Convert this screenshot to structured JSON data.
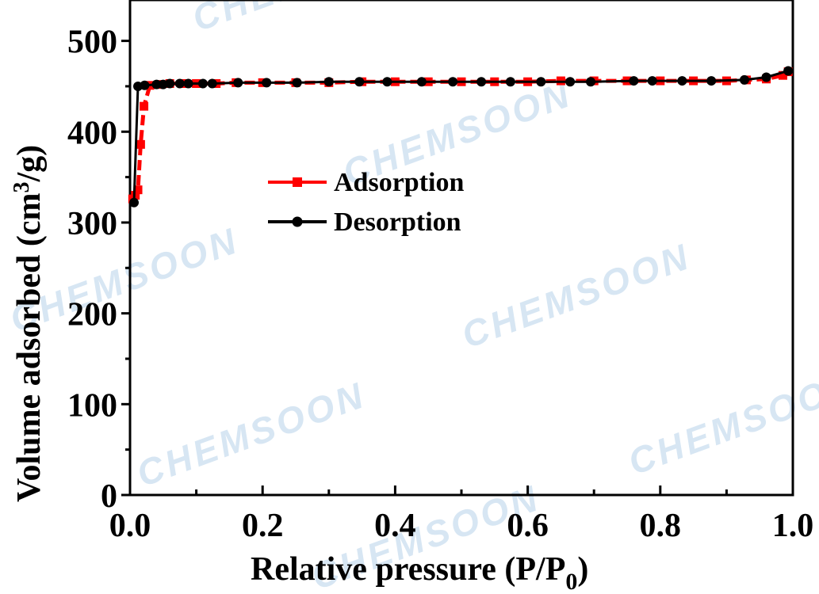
{
  "chart_data": {
    "type": "line",
    "title": "",
    "xlabel": "Relative pressure  (P/P",
    "xlabel_sub": "0",
    "xlabel_close": ")",
    "ylabel": "Volume adsorbed (cm",
    "ylabel_sup": "3",
    "ylabel_end": "/g)",
    "xlim": [
      0.0,
      1.0
    ],
    "ylim": [
      0,
      545
    ],
    "xticks": [
      0.0,
      0.2,
      0.4,
      0.6,
      0.8,
      1.0
    ],
    "xtick_labels": [
      "0.0",
      "0.2",
      "0.4",
      "0.6",
      "0.8",
      "1.0"
    ],
    "yticks": [
      0,
      100,
      200,
      300,
      400,
      500
    ],
    "ytick_labels": [
      "0",
      "100",
      "200",
      "300",
      "400",
      "500"
    ],
    "legend_position": "center-left",
    "watermark": "CHEMSOON",
    "series": [
      {
        "name": "Adsorption",
        "color": "#ff0000",
        "marker": "square",
        "dashed": true,
        "x": [
          0.004,
          0.008,
          0.012,
          0.016,
          0.021,
          0.03,
          0.045,
          0.06,
          0.08,
          0.1,
          0.13,
          0.16,
          0.2,
          0.25,
          0.3,
          0.35,
          0.4,
          0.45,
          0.5,
          0.55,
          0.6,
          0.65,
          0.7,
          0.75,
          0.8,
          0.85,
          0.9,
          0.93,
          0.96,
          0.985,
          0.993
        ],
        "y": [
          326,
          330,
          336,
          386,
          428,
          451,
          452,
          453,
          453,
          453,
          453,
          454,
          454,
          454,
          454,
          455,
          455,
          455,
          455,
          455,
          455,
          456,
          456,
          456,
          456,
          456,
          456,
          457,
          458,
          462,
          466
        ]
      },
      {
        "name": "Desorption",
        "color": "#000000",
        "marker": "circle",
        "dashed": false,
        "x": [
          0.993,
          0.96,
          0.927,
          0.877,
          0.833,
          0.788,
          0.76,
          0.695,
          0.664,
          0.62,
          0.574,
          0.53,
          0.487,
          0.44,
          0.388,
          0.346,
          0.3,
          0.252,
          0.206,
          0.163,
          0.124,
          0.11,
          0.088,
          0.075,
          0.06,
          0.05,
          0.04,
          0.022,
          0.012,
          0.006
        ],
        "y": [
          467,
          460,
          457,
          456,
          456,
          456,
          456,
          455,
          455,
          455,
          455,
          455,
          455,
          455,
          455,
          455,
          455,
          454,
          454,
          454,
          453,
          453,
          453,
          453,
          453,
          452,
          452,
          451,
          450,
          322
        ]
      }
    ]
  }
}
